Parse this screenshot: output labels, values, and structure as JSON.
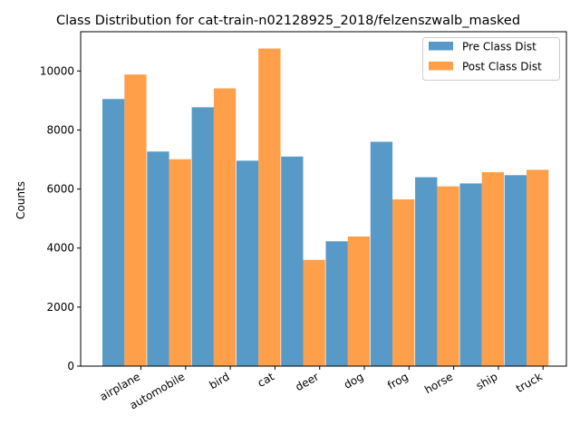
{
  "chart_data": {
    "type": "bar",
    "title": "Class Distribution for cat-train-n02128925_2018/felzenszwalb_masked",
    "xlabel": "",
    "ylabel": "Counts",
    "categories": [
      "airplane",
      "automobile",
      "bird",
      "cat",
      "deer",
      "dog",
      "frog",
      "horse",
      "ship",
      "truck"
    ],
    "series": [
      {
        "name": "Pre Class Dist",
        "color": "#1f77b4",
        "values": [
          9050,
          7270,
          8770,
          6960,
          7100,
          4230,
          7600,
          6400,
          6190,
          6470
        ]
      },
      {
        "name": "Post Class Dist",
        "color": "#ff7f0e",
        "values": [
          9880,
          7010,
          9410,
          10760,
          3600,
          4390,
          5650,
          6090,
          6570,
          6650
        ]
      }
    ],
    "ylim": [
      0,
      11330
    ],
    "yticks": [
      0,
      2000,
      4000,
      6000,
      8000,
      10000
    ],
    "legend_position": "top-right",
    "grid": false
  }
}
